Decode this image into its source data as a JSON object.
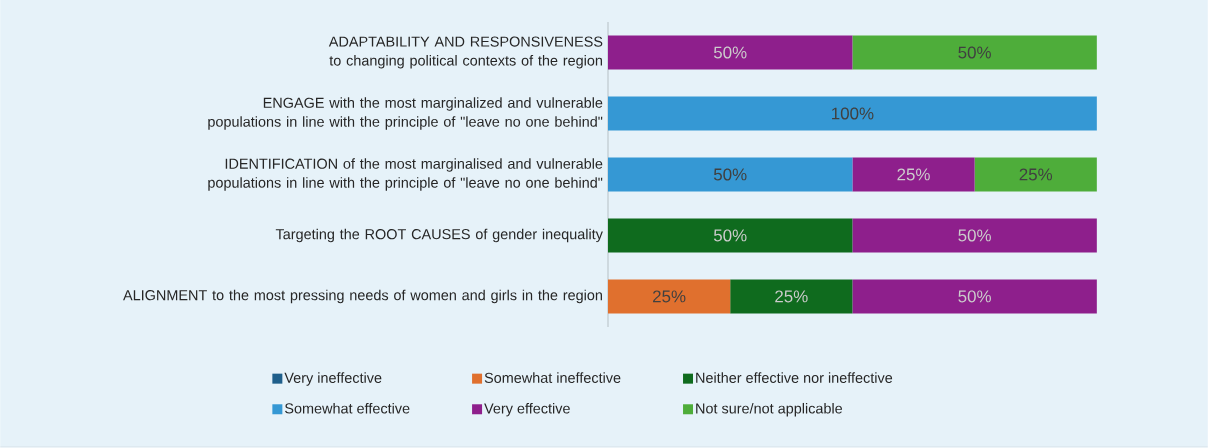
{
  "chart_data": {
    "type": "bar",
    "orientation": "horizontal",
    "stacked": true,
    "legend": "bottom",
    "grid": false,
    "categories": [
      "ADAPTABILITY AND RESPONSIVENESS to changing political contexts of the region",
      "ENGAGE with the most marginalized and vulnerable populations in line with the principle of \"leave no one behind\"",
      "IDENTIFICATION of the most marginalised and vulnerable populations in line with the principle of \"leave no one behind\"",
      "Targeting the ROOT CAUSES of gender inequality",
      "ALIGNMENT to the most pressing needs of women and girls in the region"
    ],
    "xlim": [
      0,
      100
    ],
    "tick_labels": "y",
    "series": [
      {
        "name": "Very ineffective",
        "color": "#1f5f8b",
        "values": [
          null,
          null,
          null,
          null,
          null
        ],
        "value_labels": [
          null,
          null,
          null,
          null,
          null
        ]
      },
      {
        "name": "Somewhat ineffective",
        "color": "#e0702e",
        "values": [
          null,
          null,
          null,
          null,
          25
        ],
        "value_labels": [
          null,
          null,
          null,
          null,
          "25%"
        ]
      },
      {
        "name": "Neither effective nor ineffective",
        "color": "#0f6b1e",
        "values": [
          null,
          null,
          null,
          50,
          25
        ],
        "value_labels": [
          null,
          null,
          null,
          "50%",
          "25%"
        ]
      },
      {
        "name": "Somewhat effective",
        "color": "#3598d4",
        "values": [
          null,
          100,
          50,
          null,
          null
        ],
        "value_labels": [
          null,
          "100%",
          "50%",
          null,
          null
        ]
      },
      {
        "name": "Very effective",
        "color": "#8e1f8c",
        "values": [
          50,
          null,
          25,
          50,
          50
        ],
        "value_labels": [
          "50%",
          null,
          "25%",
          "50%",
          "50%"
        ]
      },
      {
        "name": "Not sure/not applicable",
        "color": "#4ead3a",
        "values": [
          50,
          null,
          25,
          null,
          null
        ],
        "value_labels": [
          "50%",
          null,
          "25%",
          null,
          null
        ]
      }
    ]
  }
}
